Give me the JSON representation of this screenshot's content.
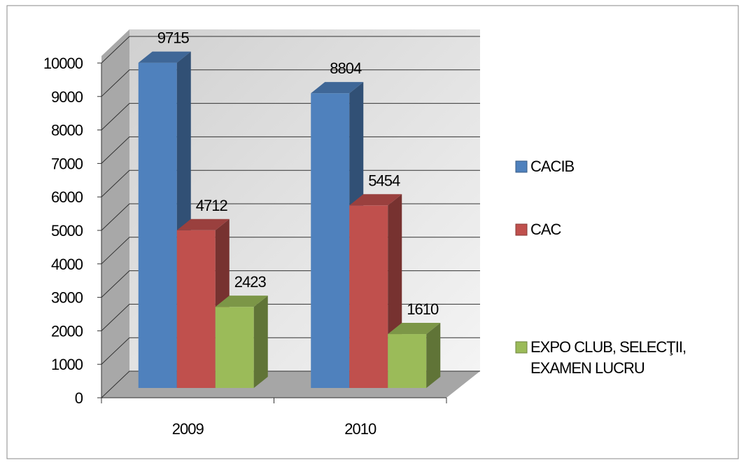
{
  "chart_data": {
    "type": "bar3d",
    "categories": [
      "2009",
      "2010"
    ],
    "series": [
      {
        "name": "CACIB",
        "color": "#4f81bd",
        "values": [
          9715,
          8804
        ]
      },
      {
        "name": "CAC",
        "color": "#c0504d",
        "values": [
          4712,
          5454
        ]
      },
      {
        "name": "EXPO CLUB, SELECŢII, EXAMEN LUCRU",
        "color": "#9bbb59",
        "values": [
          2423,
          1610
        ]
      }
    ],
    "ylim": [
      0,
      10000
    ],
    "yticks": [
      0,
      1000,
      2000,
      3000,
      4000,
      5000,
      6000,
      7000,
      8000,
      9000,
      10000
    ],
    "grid": true,
    "legend": "right"
  }
}
